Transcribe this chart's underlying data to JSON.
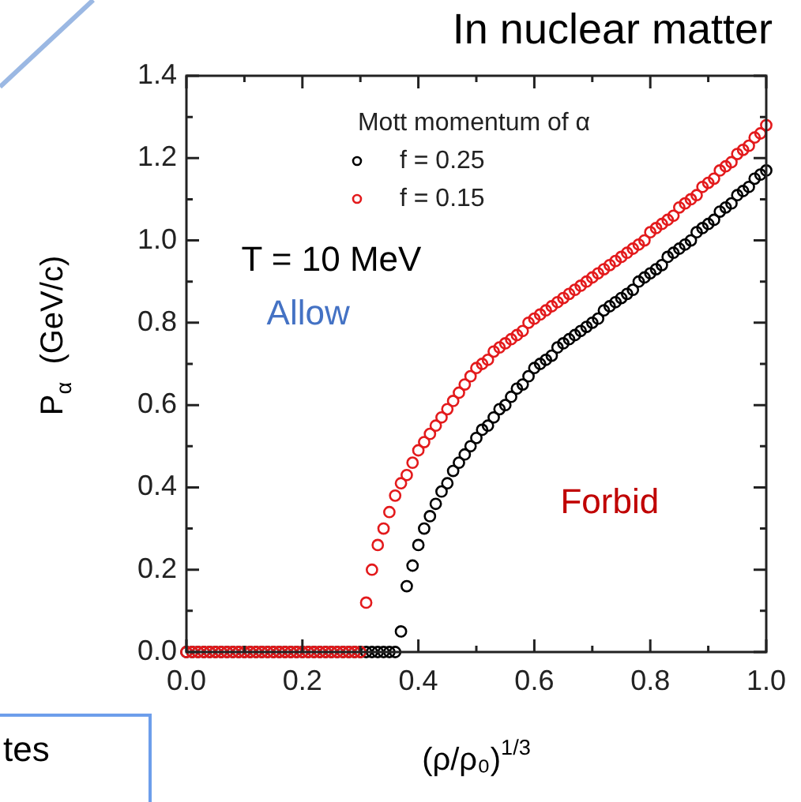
{
  "chart_data": {
    "type": "scatter",
    "title": "In nuclear matter",
    "xlabel": "(ρ/ρ₀)$^{1/3}$",
    "ylabel": "P$_{α}$  (GeV/c)",
    "legend_title": "Mott momentum of α",
    "legend": "top",
    "marker": "circle",
    "annotations": [
      "T = 10 MeV",
      "Allow",
      "Forbid",
      "tes"
    ],
    "x": [
      0,
      0.01,
      0.02,
      0.03,
      0.04,
      0.05,
      0.06,
      0.07,
      0.08,
      0.09,
      0.1,
      0.11,
      0.12,
      0.13,
      0.14,
      0.15,
      0.16,
      0.17,
      0.18,
      0.19,
      0.2,
      0.21,
      0.22,
      0.23,
      0.24,
      0.25,
      0.26,
      0.27,
      0.28,
      0.29,
      0.3,
      0.31,
      0.32,
      0.33,
      0.34,
      0.35,
      0.36,
      0.37,
      0.38,
      0.39,
      0.4,
      0.41,
      0.42,
      0.43,
      0.44,
      0.45,
      0.46,
      0.47,
      0.48,
      0.49,
      0.5,
      0.51,
      0.52,
      0.53,
      0.54,
      0.55,
      0.56,
      0.57,
      0.58,
      0.59,
      0.6,
      0.61,
      0.62,
      0.63,
      0.64,
      0.65,
      0.66,
      0.67,
      0.68,
      0.69,
      0.7,
      0.71,
      0.72,
      0.73,
      0.74,
      0.75,
      0.76,
      0.77,
      0.78,
      0.79,
      0.8,
      0.81,
      0.82,
      0.83,
      0.84,
      0.85,
      0.86,
      0.87,
      0.88,
      0.89,
      0.9,
      0.91,
      0.92,
      0.93,
      0.94,
      0.95,
      0.96,
      0.97,
      0.98,
      0.99,
      1
    ],
    "series": [
      {
        "name": "f = 0.25",
        "color": "#000000",
        "values": [
          0,
          0,
          0,
          0,
          0,
          0,
          0,
          0,
          0,
          0,
          0,
          0,
          0,
          0,
          0,
          0,
          0,
          0,
          0,
          0,
          0,
          0,
          0,
          0,
          0,
          0,
          0,
          0,
          0,
          0,
          0,
          0,
          0,
          0,
          0,
          0,
          0,
          0.05,
          0.16,
          0.21,
          0.26,
          0.3,
          0.33,
          0.36,
          0.39,
          0.41,
          0.44,
          0.46,
          0.48,
          0.5,
          0.52,
          0.54,
          0.55,
          0.57,
          0.59,
          0.6,
          0.62,
          0.64,
          0.65,
          0.67,
          0.69,
          0.7,
          0.71,
          0.72,
          0.74,
          0.75,
          0.76,
          0.77,
          0.78,
          0.79,
          0.8,
          0.81,
          0.83,
          0.84,
          0.85,
          0.86,
          0.87,
          0.88,
          0.9,
          0.91,
          0.92,
          0.93,
          0.94,
          0.96,
          0.97,
          0.98,
          0.99,
          1.0,
          1.02,
          1.03,
          1.04,
          1.05,
          1.07,
          1.08,
          1.09,
          1.11,
          1.12,
          1.13,
          1.15,
          1.16,
          1.17
        ]
      },
      {
        "name": "f = 0.15",
        "color": "#e31a1c",
        "values": [
          0,
          0,
          0,
          0,
          0,
          0,
          0,
          0,
          0,
          0,
          0,
          0,
          0,
          0,
          0,
          0,
          0,
          0,
          0,
          0,
          0,
          0,
          0,
          0,
          0,
          0,
          0,
          0,
          0,
          0,
          0,
          0.12,
          0.2,
          0.26,
          0.3,
          0.34,
          0.38,
          0.41,
          0.43,
          0.46,
          0.49,
          0.51,
          0.53,
          0.55,
          0.57,
          0.59,
          0.61,
          0.63,
          0.65,
          0.67,
          0.69,
          0.7,
          0.71,
          0.73,
          0.74,
          0.75,
          0.76,
          0.77,
          0.78,
          0.8,
          0.81,
          0.82,
          0.83,
          0.84,
          0.85,
          0.86,
          0.87,
          0.88,
          0.89,
          0.9,
          0.91,
          0.92,
          0.93,
          0.94,
          0.95,
          0.96,
          0.97,
          0.98,
          0.99,
          1.0,
          1.02,
          1.03,
          1.04,
          1.05,
          1.06,
          1.08,
          1.09,
          1.1,
          1.11,
          1.13,
          1.14,
          1.15,
          1.17,
          1.18,
          1.19,
          1.21,
          1.22,
          1.23,
          1.25,
          1.26,
          1.28
        ]
      }
    ],
    "xlim": [
      0,
      1
    ],
    "ylim": [
      0,
      1.4
    ],
    "xticks": [
      {
        "value": 0,
        "label": "0.0"
      },
      {
        "value": 0.2,
        "label": "0.2"
      },
      {
        "value": 0.4,
        "label": "0.4"
      },
      {
        "value": 0.6,
        "label": "0.6"
      },
      {
        "value": 0.8,
        "label": "0.8"
      },
      {
        "value": 1,
        "label": "1.0"
      }
    ],
    "yticks": [
      {
        "value": 0,
        "label": "0.0"
      },
      {
        "value": 0.2,
        "label": "0.2"
      },
      {
        "value": 0.4,
        "label": "0.4"
      },
      {
        "value": 0.6,
        "label": "0.6"
      },
      {
        "value": 0.8,
        "label": "0.8"
      },
      {
        "value": 1,
        "label": "1.0"
      },
      {
        "value": 1.2,
        "label": "1.2"
      },
      {
        "value": 1.4,
        "label": "1.4"
      }
    ]
  }
}
